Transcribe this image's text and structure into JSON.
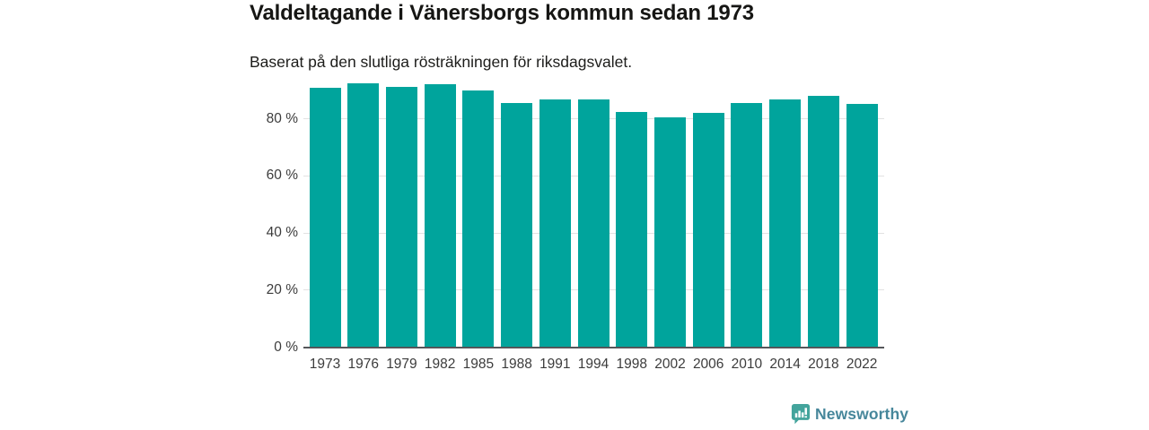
{
  "chart_data": {
    "type": "bar",
    "title": "Valdeltagande i Vänersborgs kommun sedan 1973",
    "subtitle": "Baserat på den slutliga rösträkningen för riksdagsvalet.",
    "categories": [
      "1973",
      "1976",
      "1979",
      "1982",
      "1985",
      "1988",
      "1991",
      "1994",
      "1998",
      "2002",
      "2006",
      "2010",
      "2014",
      "2018",
      "2022"
    ],
    "values": [
      90.9,
      92.3,
      91.1,
      92.0,
      90.0,
      85.6,
      86.6,
      86.8,
      82.2,
      80.5,
      82.1,
      85.5,
      86.7,
      87.9,
      85.2
    ],
    "unit": "%",
    "xlabel": "",
    "ylabel": "",
    "ylim": [
      0,
      100
    ],
    "yticks": [
      0,
      20,
      40,
      60,
      80
    ],
    "ytick_labels": [
      "0 %",
      "20 %",
      "40 %",
      "60 %",
      "80 %"
    ],
    "grid": "horizontal-only",
    "legend": "none",
    "bar_color": "#00a49c",
    "axis_line_color": "#55565a",
    "gridline_color": "#e2e2e2",
    "tick_label_color": "#3c3c3c"
  },
  "footer": {
    "brand": "Newsworthy",
    "brand_color": "#47879b",
    "logo_color": "#43a49c",
    "logo_icon": "bar-chart-speech-bubble-icon"
  }
}
